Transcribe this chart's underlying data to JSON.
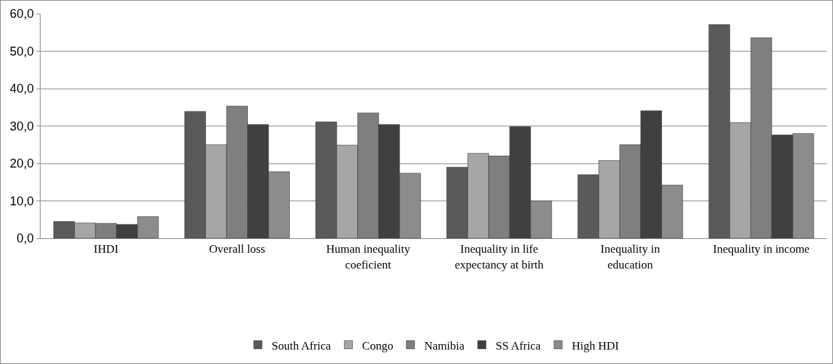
{
  "chart_data": {
    "type": "bar",
    "categories": [
      "IHDI",
      "Overall loss",
      "Human inequality coeficient",
      "Inequality in life expectancy at birth",
      "Inequality in education",
      "Inequality in income"
    ],
    "series": [
      {
        "name": "South Africa",
        "color": "#5a5a5a",
        "values": [
          4.5,
          33.9,
          31.1,
          19.0,
          17.0,
          57.1
        ]
      },
      {
        "name": "Congo",
        "color": "#a6a6a6",
        "values": [
          4.1,
          25.0,
          24.9,
          22.7,
          20.8,
          30.9
        ]
      },
      {
        "name": "Namibia",
        "color": "#7f7f7f",
        "values": [
          4.0,
          35.3,
          33.5,
          22.0,
          25.0,
          53.6
        ]
      },
      {
        "name": "SS Africa",
        "color": "#404040",
        "values": [
          3.7,
          30.4,
          30.4,
          29.8,
          34.1,
          27.6
        ]
      },
      {
        "name": "High HDI",
        "color": "#8c8c8c",
        "values": [
          5.8,
          17.8,
          17.4,
          10.0,
          14.2,
          28.0
        ]
      }
    ],
    "ylim": [
      0,
      60
    ],
    "yticks": [
      {
        "value": 0,
        "label": "0,0"
      },
      {
        "value": 10,
        "label": "10,0"
      },
      {
        "value": 20,
        "label": "20,0"
      },
      {
        "value": 30,
        "label": "30,0"
      },
      {
        "value": 40,
        "label": "40,0"
      },
      {
        "value": 50,
        "label": "50,0"
      },
      {
        "value": 60,
        "label": "60,0"
      }
    ],
    "grid": "y",
    "legend": "bottom"
  }
}
